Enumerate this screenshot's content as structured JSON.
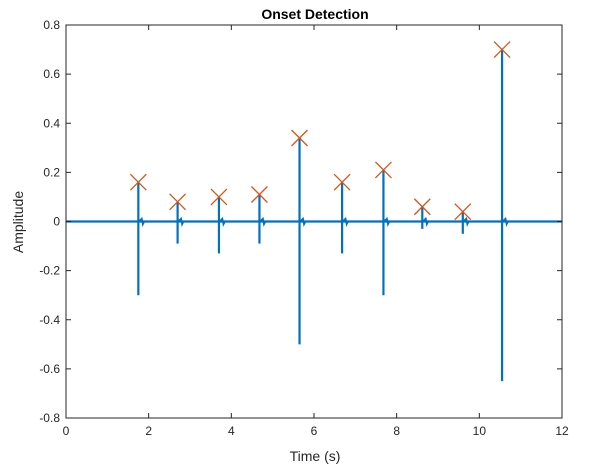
{
  "chart_data": {
    "type": "line",
    "title": "Onset Detection",
    "xlabel": "Time (s)",
    "ylabel": "Amplitude",
    "xlim": [
      0,
      12
    ],
    "ylim": [
      -0.8,
      0.8
    ],
    "xticks": [
      0,
      2,
      4,
      6,
      8,
      10,
      12
    ],
    "yticks": [
      -0.8,
      -0.6,
      -0.4,
      -0.2,
      0,
      0.2,
      0.4,
      0.6,
      0.8
    ],
    "xtick_labels": [
      "0",
      "2",
      "4",
      "6",
      "8",
      "10",
      "12"
    ],
    "ytick_labels": [
      "-0.8",
      "-0.6",
      "-0.4",
      "-0.2",
      "0",
      "0.2",
      "0.4",
      "0.6",
      "0.8"
    ],
    "grid": false,
    "series": [
      {
        "kind": "signal",
        "color": "#0072BD",
        "pulses": [
          {
            "x": 1.75,
            "peak": 0.16,
            "trough": -0.3
          },
          {
            "x": 2.7,
            "peak": 0.08,
            "trough": -0.09
          },
          {
            "x": 3.7,
            "peak": 0.1,
            "trough": -0.13
          },
          {
            "x": 4.68,
            "peak": 0.11,
            "trough": -0.09
          },
          {
            "x": 5.65,
            "peak": 0.34,
            "trough": -0.5
          },
          {
            "x": 6.68,
            "peak": 0.16,
            "trough": -0.13
          },
          {
            "x": 7.68,
            "peak": 0.21,
            "trough": -0.3
          },
          {
            "x": 8.62,
            "peak": 0.06,
            "trough": -0.03
          },
          {
            "x": 9.6,
            "peak": 0.04,
            "trough": -0.05
          },
          {
            "x": 10.55,
            "peak": 0.7,
            "trough": -0.65
          }
        ]
      },
      {
        "kind": "markers",
        "marker": "x",
        "color": "#D95319",
        "x": [
          1.75,
          2.7,
          3.7,
          4.68,
          5.65,
          6.68,
          7.68,
          8.62,
          9.6,
          10.55
        ],
        "y": [
          0.16,
          0.08,
          0.1,
          0.11,
          0.34,
          0.16,
          0.21,
          0.06,
          0.04,
          0.7
        ]
      }
    ]
  }
}
